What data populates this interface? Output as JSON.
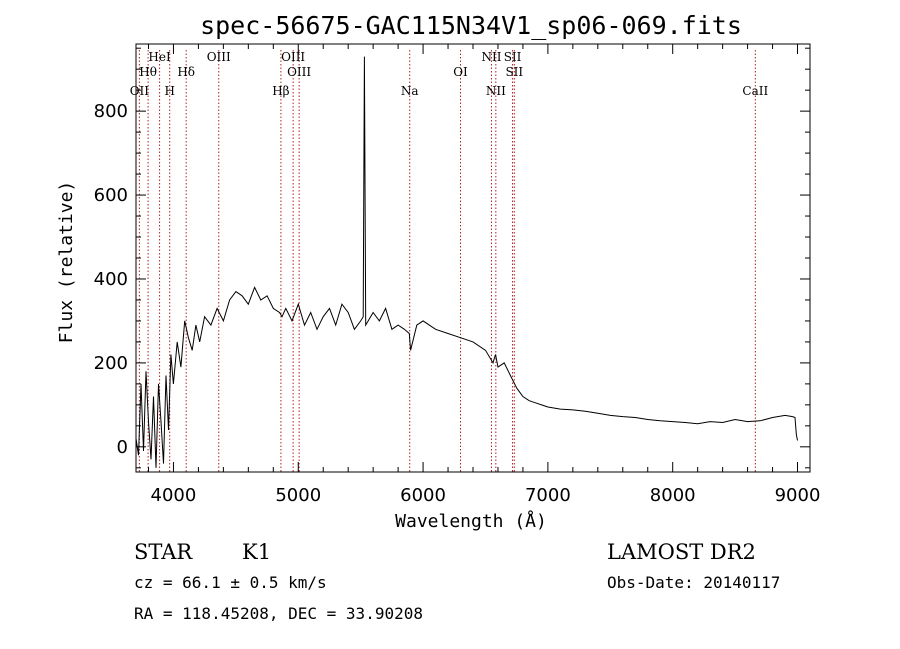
{
  "chart_data": {
    "type": "line",
    "title": "spec-56675-GAC115N34V1_sp06-069.fits",
    "xlabel": "Wavelength (Å)",
    "ylabel": "Flux (relative)",
    "xlim": [
      3700,
      9100
    ],
    "ylim": [
      -60,
      960
    ],
    "xticks": [
      4000,
      5000,
      6000,
      7000,
      8000,
      9000
    ],
    "yticks": [
      0,
      200,
      400,
      600,
      800
    ],
    "grid": false,
    "series": [
      {
        "x": [
          3700,
          3720,
          3740,
          3760,
          3780,
          3800,
          3820,
          3840,
          3860,
          3880,
          3900,
          3920,
          3940,
          3960,
          3980,
          4000,
          4030,
          4060,
          4090,
          4120,
          4150,
          4180,
          4210,
          4250,
          4300,
          4350,
          4400,
          4450,
          4500,
          4550,
          4600,
          4650,
          4700,
          4750,
          4800,
          4850,
          4870,
          4900,
          4950,
          5000,
          5050,
          5100,
          5150,
          5200,
          5250,
          5300,
          5350,
          5400,
          5450,
          5500,
          5520,
          5530,
          5540,
          5560,
          5600,
          5650,
          5700,
          5750,
          5800,
          5850,
          5890,
          5900,
          5950,
          6000,
          6100,
          6200,
          6300,
          6400,
          6500,
          6560,
          6580,
          6600,
          6650,
          6700,
          6750,
          6800,
          6850,
          6900,
          6950,
          7000,
          7100,
          7200,
          7300,
          7400,
          7500,
          7600,
          7700,
          7800,
          7900,
          8000,
          8100,
          8200,
          8300,
          8400,
          8500,
          8600,
          8700,
          8800,
          8900,
          8960,
          8980,
          8990,
          9000
        ],
        "y": [
          20,
          -20,
          150,
          -10,
          180,
          60,
          -30,
          120,
          -50,
          150,
          60,
          -40,
          170,
          40,
          220,
          150,
          250,
          190,
          300,
          260,
          230,
          290,
          250,
          310,
          290,
          330,
          300,
          350,
          370,
          360,
          340,
          380,
          350,
          360,
          330,
          320,
          310,
          330,
          300,
          340,
          290,
          320,
          280,
          310,
          330,
          290,
          340,
          320,
          280,
          300,
          310,
          930,
          290,
          300,
          320,
          300,
          330,
          280,
          290,
          280,
          270,
          230,
          290,
          300,
          280,
          270,
          260,
          250,
          230,
          200,
          220,
          190,
          200,
          170,
          140,
          120,
          110,
          105,
          100,
          95,
          90,
          88,
          85,
          80,
          75,
          72,
          70,
          65,
          62,
          60,
          58,
          55,
          60,
          58,
          65,
          60,
          62,
          70,
          75,
          72,
          70,
          30,
          15
        ]
      }
    ],
    "annotations": [
      {
        "label": "OII",
        "x": 3727
      },
      {
        "label": "Hθ",
        "x": 3797
      },
      {
        "label": "HeI",
        "x": 3889
      },
      {
        "label": "H",
        "x": 3970
      },
      {
        "label": "Hδ",
        "x": 4102
      },
      {
        "label": "OIII",
        "x": 4363
      },
      {
        "label": "Hβ",
        "x": 4861
      },
      {
        "label": "OIII",
        "x": 4959
      },
      {
        "label": "OIII",
        "x": 5007
      },
      {
        "label": "Na",
        "x": 5893
      },
      {
        "label": "OI",
        "x": 6300
      },
      {
        "label": "NII",
        "x": 6548
      },
      {
        "label": "NII",
        "x": 6583
      },
      {
        "label": "SII",
        "x": 6717
      },
      {
        "label": "SII",
        "x": 6731
      },
      {
        "label": "CaII",
        "x": 8662
      }
    ]
  },
  "info": {
    "class": "STAR",
    "subclass": "K1",
    "survey": "LAMOST DR2",
    "cz": "cz = 66.1 ± 0.5 km/s",
    "obs_date": "Obs-Date: 20140117",
    "coords": "RA = 118.45208, DEC =  33.90208"
  },
  "colors": {
    "line_marker": "#b22222",
    "spectrum": "#000000"
  }
}
